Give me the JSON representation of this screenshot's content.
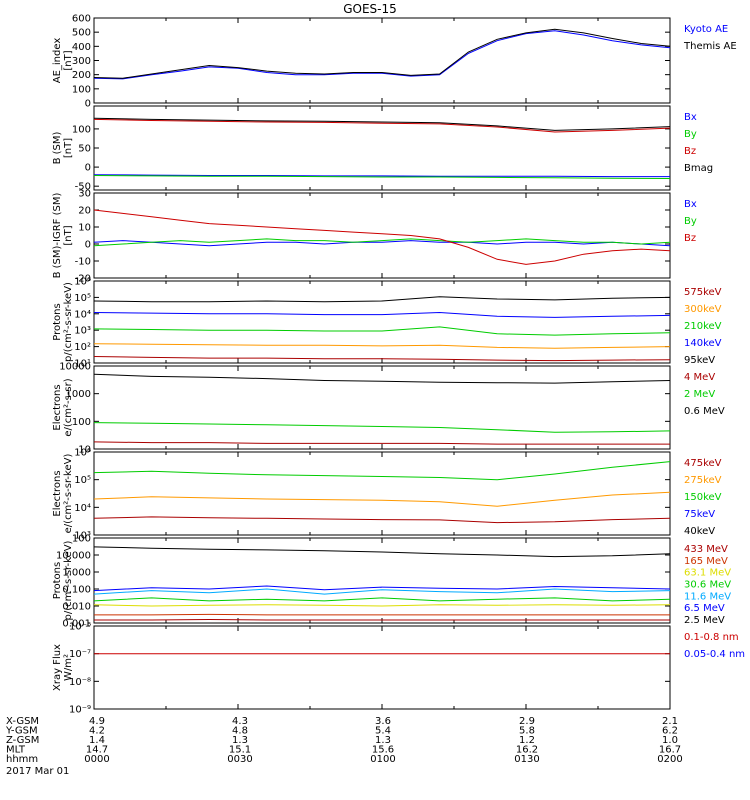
{
  "title": "GOES-15",
  "date_label": "2017 Mar 01",
  "time_axis": {
    "range_hhmm": [
      "0000",
      "0200"
    ],
    "tick_labels": [
      "0000",
      "0030",
      "0100",
      "0130",
      "0200"
    ]
  },
  "ephemeris": {
    "rows": [
      {
        "label": "X-GSM",
        "values": [
          "4.9",
          "4.3",
          "3.6",
          "2.9",
          "2.1"
        ]
      },
      {
        "label": "Y-GSM",
        "values": [
          "4.2",
          "4.8",
          "5.4",
          "5.8",
          "6.2"
        ]
      },
      {
        "label": "Z-GSM",
        "values": [
          "1.4",
          "1.3",
          "1.3",
          "1.2",
          "1.0"
        ]
      },
      {
        "label": "MLT",
        "values": [
          "14.7",
          "15.1",
          "15.6",
          "16.2",
          "16.7"
        ]
      },
      {
        "label": "hhmm",
        "values": [
          "0000",
          "0030",
          "0100",
          "0130",
          "0200"
        ]
      }
    ]
  },
  "chart_data": [
    {
      "type": "line",
      "ylabel": [
        "AE_index",
        "[nT]"
      ],
      "ylim": [
        0,
        600
      ],
      "scale": "linear",
      "yticks": [
        "0",
        "100",
        "200",
        "300",
        "400",
        "500",
        "600"
      ],
      "ytick_values": [
        0,
        100,
        200,
        300,
        400,
        500,
        600
      ],
      "x_hours": [
        0,
        0.1,
        0.2,
        0.3,
        0.4,
        0.5,
        0.6,
        0.7,
        0.8,
        0.9,
        1.0,
        1.1,
        1.2,
        1.3,
        1.4,
        1.5,
        1.6,
        1.7,
        1.8,
        1.9,
        2.0
      ],
      "series": [
        {
          "name": "Kyoto AE",
          "color": "#0000ff",
          "values": [
            175,
            170,
            200,
            225,
            255,
            245,
            215,
            200,
            200,
            210,
            210,
            190,
            200,
            350,
            440,
            490,
            510,
            480,
            440,
            410,
            390
          ]
        },
        {
          "name": "Themis AE",
          "color": "#000000",
          "values": [
            180,
            175,
            205,
            235,
            265,
            250,
            225,
            210,
            205,
            215,
            215,
            195,
            205,
            360,
            450,
            495,
            520,
            495,
            455,
            420,
            400
          ]
        }
      ]
    },
    {
      "type": "line",
      "ylabel": [
        "B (SM)",
        "[nT]"
      ],
      "ylim": [
        -60,
        160
      ],
      "scale": "linear",
      "yticks": [
        "-50",
        "0",
        "50",
        "100"
      ],
      "ytick_values": [
        -50,
        0,
        50,
        100
      ],
      "x_hours": [
        0,
        0.2,
        0.4,
        0.6,
        0.8,
        1.0,
        1.2,
        1.4,
        1.6,
        1.8,
        2.0
      ],
      "series": [
        {
          "name": "Bx",
          "color": "#0000ff",
          "values": [
            -20,
            -21,
            -22,
            -22,
            -23,
            -23,
            -24,
            -24,
            -24,
            -25,
            -25
          ]
        },
        {
          "name": "By",
          "color": "#00cc00",
          "values": [
            -22,
            -23,
            -24,
            -24,
            -25,
            -26,
            -26,
            -27,
            -28,
            -29,
            -30
          ]
        },
        {
          "name": "Bz",
          "color": "#cc0000",
          "values": [
            125,
            122,
            120,
            118,
            117,
            115,
            113,
            105,
            92,
            96,
            102
          ]
        },
        {
          "name": "Bmag",
          "color": "#000000",
          "values": [
            128,
            125,
            123,
            121,
            120,
            118,
            116,
            108,
            96,
            100,
            106
          ]
        }
      ]
    },
    {
      "type": "line",
      "ylabel": [
        "B (SM)-IGRF (SM)",
        "[nT]"
      ],
      "ylim": [
        -20,
        30
      ],
      "scale": "linear",
      "yticks": [
        "-20",
        "-10",
        "0",
        "10",
        "20",
        "30"
      ],
      "ytick_values": [
        -20,
        -10,
        0,
        10,
        20,
        30
      ],
      "x_hours": [
        0,
        0.1,
        0.2,
        0.3,
        0.4,
        0.5,
        0.6,
        0.7,
        0.8,
        0.9,
        1.0,
        1.1,
        1.2,
        1.3,
        1.4,
        1.5,
        1.6,
        1.7,
        1.8,
        1.9,
        2.0
      ],
      "series": [
        {
          "name": "Bx",
          "color": "#0000ff",
          "values": [
            1,
            2,
            1,
            0,
            -1,
            0,
            1,
            1,
            0,
            1,
            1,
            2,
            1,
            1,
            0,
            1,
            1,
            0,
            1,
            0,
            -1
          ]
        },
        {
          "name": "By",
          "color": "#00cc00",
          "values": [
            -1,
            0,
            1,
            2,
            1,
            2,
            3,
            2,
            2,
            1,
            2,
            3,
            2,
            1,
            2,
            3,
            2,
            1,
            1,
            0,
            1
          ]
        },
        {
          "name": "Bz",
          "color": "#cc0000",
          "values": [
            20,
            18,
            16,
            14,
            12,
            11,
            10,
            9,
            8,
            7,
            6,
            5,
            3,
            -2,
            -9,
            -12,
            -10,
            -6,
            -4,
            -3,
            -4
          ]
        }
      ]
    },
    {
      "type": "line",
      "ylabel": [
        "Protons",
        "p/(cm²-s-sr-keV)"
      ],
      "ylim": [
        10,
        1000000
      ],
      "scale": "log",
      "yticks": [
        "10¹",
        "10²",
        "10³",
        "10⁴",
        "10⁵",
        "10⁶"
      ],
      "ytick_values": [
        10,
        100,
        1000,
        10000,
        100000,
        1000000
      ],
      "x_hours": [
        0,
        0.2,
        0.4,
        0.6,
        0.8,
        1.0,
        1.2,
        1.4,
        1.6,
        1.8,
        2.0
      ],
      "series": [
        {
          "name": "575keV",
          "color": "#aa0000",
          "values": [
            25,
            22,
            20,
            20,
            18,
            18,
            17,
            15,
            14,
            15,
            16
          ]
        },
        {
          "name": "300keV",
          "color": "#ff9900",
          "values": [
            150,
            140,
            130,
            120,
            120,
            110,
            120,
            90,
            80,
            90,
            100
          ]
        },
        {
          "name": "210keV",
          "color": "#00cc00",
          "values": [
            1200,
            1100,
            1000,
            1000,
            900,
            900,
            1600,
            600,
            500,
            600,
            700
          ]
        },
        {
          "name": "140keV",
          "color": "#0000ff",
          "values": [
            12000,
            11000,
            10000,
            10000,
            9000,
            9000,
            12000,
            7000,
            6000,
            7000,
            8000
          ]
        },
        {
          "name": "95keV",
          "color": "#000000",
          "values": [
            60000,
            55000,
            55000,
            60000,
            55000,
            60000,
            110000,
            80000,
            70000,
            90000,
            100000
          ]
        }
      ]
    },
    {
      "type": "line",
      "ylabel": [
        "Electrons",
        "e/(cm²-s-sr)"
      ],
      "ylim": [
        10,
        10000
      ],
      "scale": "log",
      "yticks": [
        "10",
        "100",
        "1000",
        "10000"
      ],
      "ytick_values": [
        10,
        100,
        1000,
        10000
      ],
      "x_hours": [
        0,
        0.2,
        0.4,
        0.6,
        0.8,
        1.0,
        1.2,
        1.4,
        1.6,
        1.8,
        2.0
      ],
      "series": [
        {
          "name": "4 MeV",
          "color": "#aa0000",
          "values": [
            18,
            17,
            17,
            16,
            16,
            16,
            16,
            15,
            15,
            15,
            15
          ]
        },
        {
          "name": "2 MeV",
          "color": "#00cc00",
          "values": [
            90,
            85,
            80,
            75,
            70,
            65,
            60,
            50,
            40,
            42,
            45
          ]
        },
        {
          "name": "0.6 MeV",
          "color": "#000000",
          "values": [
            5000,
            4200,
            3900,
            3500,
            3000,
            2800,
            2600,
            2500,
            2400,
            2700,
            3000
          ]
        }
      ]
    },
    {
      "type": "line",
      "ylabel": [
        "Electrons",
        "e/(cm²-s-sr-keV)"
      ],
      "ylim": [
        1000,
        1000000
      ],
      "scale": "log",
      "yticks": [
        "10³",
        "10⁴",
        "10⁵",
        "10⁶"
      ],
      "ytick_values": [
        1000,
        10000,
        100000,
        1000000
      ],
      "x_hours": [
        0,
        0.2,
        0.4,
        0.6,
        0.8,
        1.0,
        1.2,
        1.4,
        1.6,
        1.8,
        2.0
      ],
      "series": [
        {
          "name": "475keV",
          "color": "#aa0000",
          "values": [
            4000,
            4500,
            4200,
            4000,
            3800,
            3600,
            3500,
            2800,
            3000,
            3600,
            4000
          ]
        },
        {
          "name": "275keV",
          "color": "#ff9900",
          "values": [
            20000,
            24000,
            22000,
            20000,
            19000,
            18000,
            16000,
            11000,
            18000,
            28000,
            35000
          ]
        },
        {
          "name": "150keV",
          "color": "#00cc00",
          "values": [
            180000,
            200000,
            170000,
            150000,
            140000,
            130000,
            120000,
            100000,
            160000,
            280000,
            450000
          ]
        },
        {
          "name": "75keV",
          "color": "#0000ff",
          "values": []
        },
        {
          "name": "40keV",
          "color": "#000000",
          "values": []
        }
      ]
    },
    {
      "type": "line",
      "ylabel": [
        "Protons",
        "p/(cm²-s-sr-keV)"
      ],
      "ylim": [
        0.001,
        100
      ],
      "scale": "log",
      "yticks": [
        "0.001",
        "0.010",
        "0.100",
        "1.000",
        "10.000",
        "100"
      ],
      "ytick_values": [
        0.001,
        0.01,
        0.1,
        1,
        10,
        100
      ],
      "x_hours": [
        0,
        0.2,
        0.4,
        0.6,
        0.8,
        1.0,
        1.2,
        1.4,
        1.6,
        1.8,
        2.0
      ],
      "series": [
        {
          "name": "433 MeV",
          "color": "#aa0000",
          "values": [
            0.0015,
            0.0015,
            0.0016,
            0.0015,
            0.0015,
            0.0015,
            0.0015,
            0.0015,
            0.0015,
            0.0015,
            0.0015
          ]
        },
        {
          "name": "165 MeV",
          "color": "#cc3300",
          "values": [
            0.003,
            0.003,
            0.0032,
            0.003,
            0.003,
            0.003,
            0.003,
            0.003,
            0.003,
            0.003,
            0.003
          ]
        },
        {
          "name": "63.1 MeV",
          "color": "#dddd00",
          "values": [
            0.012,
            0.01,
            0.011,
            0.012,
            0.011,
            0.01,
            0.012,
            0.011,
            0.012,
            0.011,
            0.012
          ]
        },
        {
          "name": "30.6 MeV",
          "color": "#00cc00",
          "values": [
            0.02,
            0.03,
            0.02,
            0.025,
            0.02,
            0.03,
            0.02,
            0.025,
            0.03,
            0.02,
            0.025
          ]
        },
        {
          "name": "11.6 MeV",
          "color": "#00aaff",
          "values": [
            0.05,
            0.08,
            0.06,
            0.1,
            0.05,
            0.09,
            0.07,
            0.06,
            0.1,
            0.07,
            0.08
          ]
        },
        {
          "name": "6.5 MeV",
          "color": "#0000ff",
          "values": [
            0.08,
            0.12,
            0.1,
            0.15,
            0.09,
            0.13,
            0.11,
            0.1,
            0.14,
            0.12,
            0.1
          ]
        },
        {
          "name": "2.5 MeV",
          "color": "#000000",
          "values": [
            30,
            25,
            22,
            20,
            18,
            15,
            12,
            10,
            8,
            9,
            12
          ]
        }
      ]
    },
    {
      "type": "line",
      "ylabel": [
        "Xray Flux",
        "W/m²"
      ],
      "ylim": [
        1e-09,
        1e-06
      ],
      "scale": "log",
      "yticks": [
        "10⁻⁹",
        "10⁻⁸",
        "10⁻⁷",
        "10⁻⁶"
      ],
      "ytick_values": [
        1e-09,
        1e-08,
        1e-07,
        1e-06
      ],
      "x_hours": [
        0,
        0.2,
        0.4,
        0.6,
        0.8,
        1.0,
        1.2,
        1.4,
        1.6,
        1.8,
        2.0
      ],
      "series": [
        {
          "name": "0.1-0.8 nm",
          "color": "#cc0000",
          "values": [
            1e-07,
            1e-07,
            1e-07,
            1e-07,
            1e-07,
            1e-07,
            1e-07,
            1e-07,
            1e-07,
            1e-07,
            1e-07
          ]
        },
        {
          "name": "0.05-0.4 nm",
          "color": "#0000ff",
          "values": []
        }
      ]
    }
  ]
}
